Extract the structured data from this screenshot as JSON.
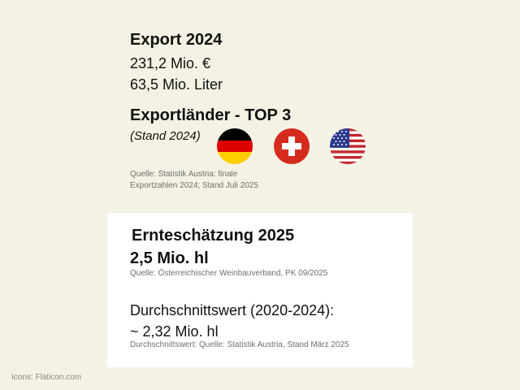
{
  "export": {
    "title": "Export 2024",
    "value_eur": "231,2 Mio. €",
    "value_liter": "63,5 Mio. Liter"
  },
  "countries": {
    "title": "Exportländer - TOP 3",
    "subtitle": "(Stand 2024)",
    "flags": [
      "germany-flag-icon",
      "switzerland-flag-icon",
      "usa-flag-icon"
    ],
    "source_line1": "Quelle: Statistik Austria: finale",
    "source_line2": "Exportzahlen 2024; Stand Juli 2025"
  },
  "harvest": {
    "title": "Ernteschätzung 2025",
    "value": "2,5 Mio. hl",
    "source": "Quelle: Österreichischer Weinbauverband, PK 09/2025",
    "avg_title": "Durchschnittswert (2020-2024):",
    "avg_value": "~ 2,32 Mio. hl",
    "avg_source": "Durchschnittswert: Quelle: Statistik Austria, Stand März 2025"
  },
  "footer": {
    "credit": "Icons: Flaticon.com"
  },
  "colors": {
    "background": "#f3f2e4",
    "card": "#ffffff",
    "swiss_red": "#d52b1e",
    "us_red": "#c1272d",
    "us_blue": "#2a3a8c",
    "de_gold": "#ffce00"
  }
}
